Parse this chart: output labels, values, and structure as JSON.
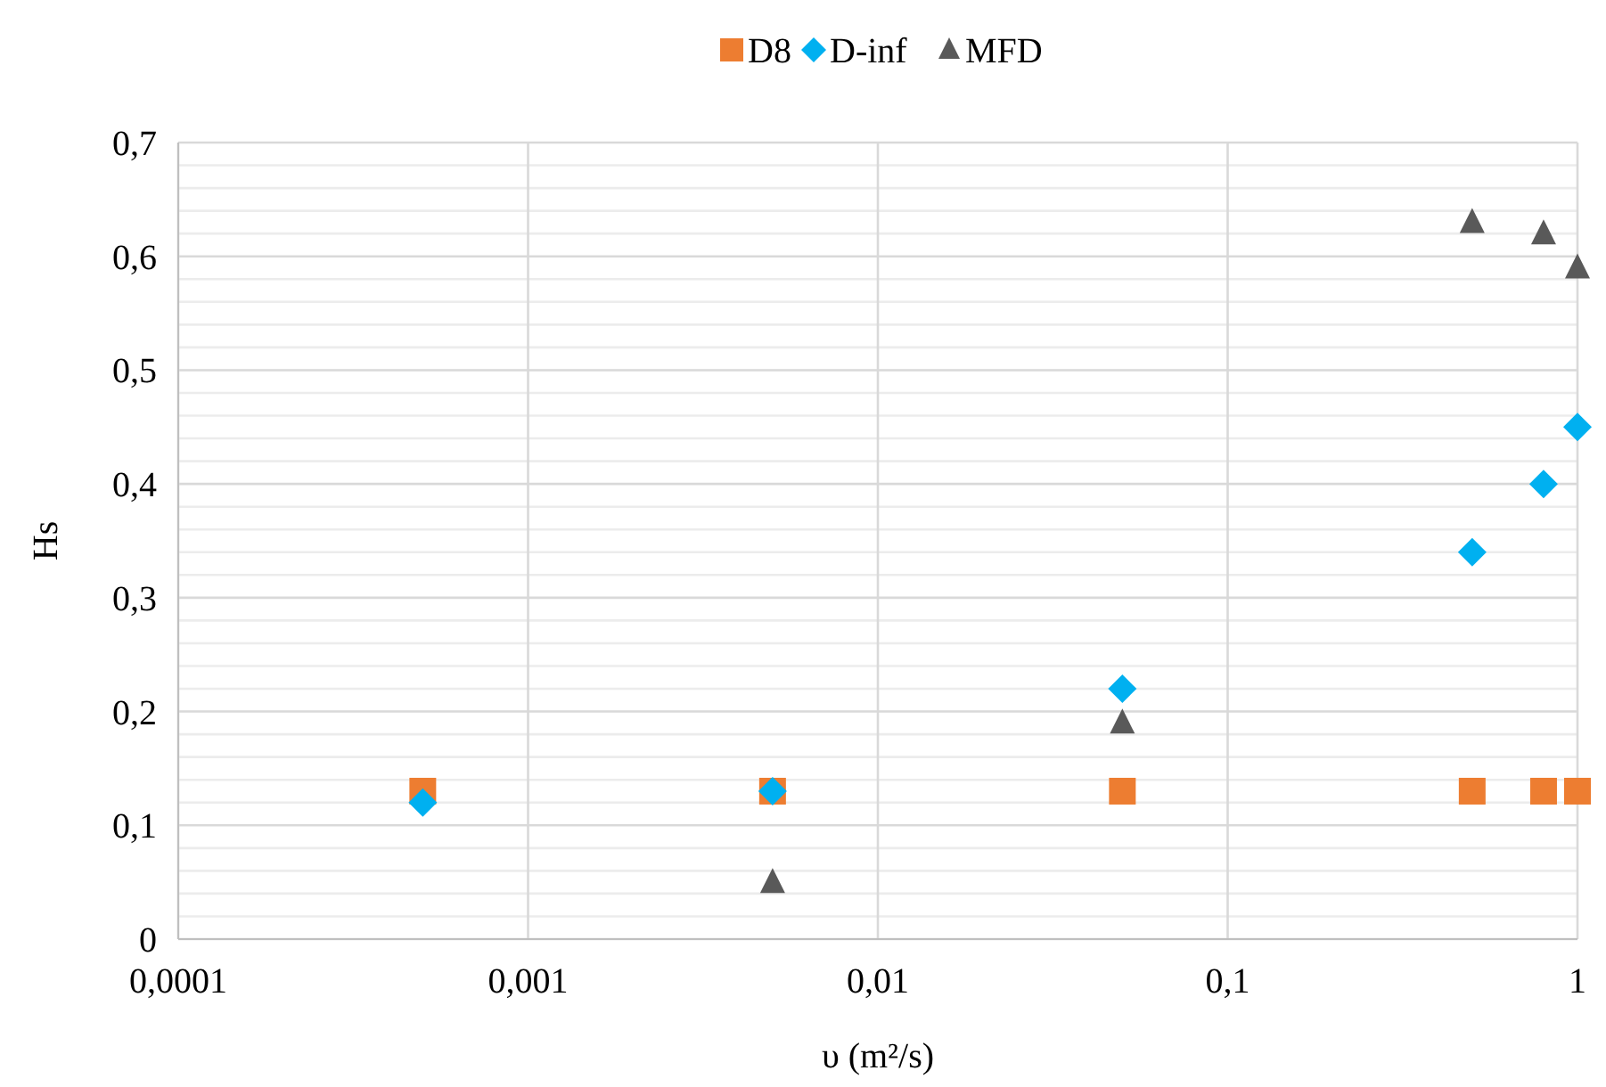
{
  "chart_data": {
    "type": "scatter",
    "xlabel": "υ (m²/s)",
    "ylabel": "Hs",
    "log": "x",
    "grid": true,
    "legend": "top",
    "x": [
      0.0005,
      0.005,
      0.05,
      0.5,
      0.8,
      1
    ],
    "series": [
      {
        "name": "D8",
        "color": "#ed7d31",
        "marker": "square",
        "values": [
          0.13,
          0.13,
          0.13,
          0.13,
          0.13,
          0.13
        ]
      },
      {
        "name": "D-inf",
        "color": "#00b0f0",
        "marker": "diamond",
        "values": [
          0.12,
          0.13,
          0.22,
          0.34,
          0.4,
          0.45
        ]
      },
      {
        "name": "MFD",
        "color": "#595959",
        "marker": "triangle",
        "x": [
          0.005,
          0.05,
          0.5,
          0.8,
          1
        ],
        "values": [
          0.05,
          0.19,
          0.63,
          0.62,
          0.59
        ]
      }
    ],
    "xlim": [
      0.0001,
      1
    ],
    "xticks": [
      {
        "value": 0.0001,
        "label": "0,0001"
      },
      {
        "value": 0.001,
        "label": "0,001"
      },
      {
        "value": 0.01,
        "label": "0,01"
      },
      {
        "value": 0.1,
        "label": "0,1"
      },
      1
    ],
    "ylim": [
      0,
      0.7
    ],
    "yticks": [
      0,
      {
        "value": 0.02,
        "label": null
      },
      {
        "value": 0.04,
        "label": null
      },
      {
        "value": 0.06,
        "label": null
      },
      {
        "value": 0.08,
        "label": null
      },
      {
        "value": 0.1,
        "label": "0,1"
      },
      {
        "value": 0.12,
        "label": null
      },
      {
        "value": 0.14,
        "label": null
      },
      {
        "value": 0.16,
        "label": null
      },
      {
        "value": 0.18,
        "label": null
      },
      {
        "value": 0.2,
        "label": "0,2"
      },
      {
        "value": 0.22,
        "label": null
      },
      {
        "value": 0.24,
        "label": null
      },
      {
        "value": 0.26,
        "label": null
      },
      {
        "value": 0.28,
        "label": null
      },
      {
        "value": 0.3,
        "label": "0,3"
      },
      {
        "value": 0.32,
        "label": null
      },
      {
        "value": 0.34,
        "label": null
      },
      {
        "value": 0.36,
        "label": null
      },
      {
        "value": 0.38,
        "label": null
      },
      {
        "value": 0.4,
        "label": "0,4"
      },
      {
        "value": 0.42,
        "label": null
      },
      {
        "value": 0.44,
        "label": null
      },
      {
        "value": 0.46,
        "label": null
      },
      {
        "value": 0.48,
        "label": null
      },
      {
        "value": 0.5,
        "label": "0,5"
      },
      {
        "value": 0.52,
        "label": null
      },
      {
        "value": 0.54,
        "label": null
      },
      {
        "value": 0.56,
        "label": null
      },
      {
        "value": 0.58,
        "label": null
      },
      {
        "value": 0.6,
        "label": "0,6"
      },
      {
        "value": 0.62,
        "label": null
      },
      {
        "value": 0.64,
        "label": null
      },
      {
        "value": 0.66,
        "label": null
      },
      {
        "value": 0.68,
        "label": null
      },
      {
        "value": 0.7,
        "label": "0,7"
      }
    ]
  }
}
